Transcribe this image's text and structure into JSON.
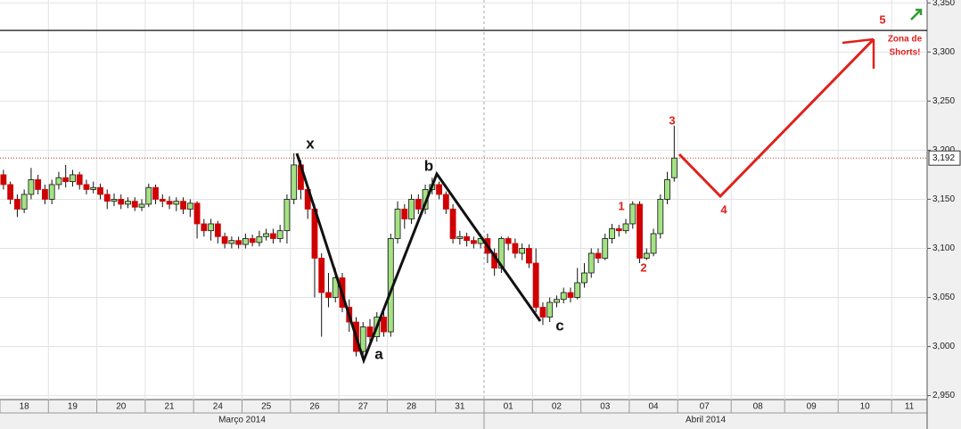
{
  "chart_data": {
    "type": "candlestick",
    "categories": [
      "18",
      "19",
      "20",
      "21",
      "24",
      "25",
      "26",
      "27",
      "28",
      "31",
      "01",
      "02",
      "03",
      "04",
      "07",
      "08",
      "09",
      "10",
      "11"
    ],
    "months": [
      "Março 2014",
      "Abril 2014"
    ],
    "ylim": [
      2946,
      3353
    ],
    "yticks": [
      {
        "value": 2950,
        "label": "2,950"
      },
      {
        "value": 3000,
        "label": "3,000"
      },
      {
        "value": 3050,
        "label": "3,050"
      },
      {
        "value": 3100,
        "label": "3,100"
      },
      {
        "value": 3150,
        "label": "3,150"
      },
      {
        "value": 3200,
        "label": "3,200"
      },
      {
        "value": 3250,
        "label": "3,250"
      },
      {
        "value": 3300,
        "label": "3,300"
      },
      {
        "value": 3350,
        "label": "3,350"
      }
    ],
    "grid": true,
    "up_color": "#a4e283",
    "down_color": "#d10000",
    "last_price": {
      "value": 3192,
      "label": "3,192"
    },
    "hlines": [
      3322
    ],
    "open": [
      3175,
      3165,
      3150,
      3140,
      3155,
      3170,
      3160,
      3150,
      3165,
      3172,
      3168,
      3175,
      3165,
      3160,
      3162,
      3155,
      3148,
      3150,
      3145,
      3148,
      3142,
      3145,
      3162,
      3150,
      3148,
      3145,
      3148,
      3140,
      3146,
      3125,
      3118,
      3125,
      3112,
      3105,
      3108,
      3104,
      3110,
      3106,
      3112,
      3115,
      3110,
      3118,
      3150,
      3185,
      3160,
      3140,
      3090,
      3055,
      3050,
      3070,
      3040,
      3025,
      2995,
      3020,
      3010,
      3030,
      3015,
      3110,
      3140,
      3130,
      3150,
      3140,
      3160,
      3165,
      3155,
      3140,
      3110,
      3112,
      3108,
      3105,
      3110,
      3095,
      3080,
      3110,
      3105,
      3095,
      3100,
      3085,
      3040,
      3030,
      3045,
      3048,
      3055,
      3050,
      3065,
      3075,
      3095,
      3090,
      3110,
      3120,
      3118,
      3125,
      3145,
      3090,
      3095,
      3115,
      3150,
      3172
    ],
    "high": [
      3180,
      3168,
      3155,
      3160,
      3182,
      3175,
      3165,
      3170,
      3178,
      3185,
      3180,
      3178,
      3170,
      3168,
      3166,
      3160,
      3156,
      3155,
      3152,
      3152,
      3150,
      3166,
      3165,
      3155,
      3153,
      3152,
      3152,
      3150,
      3148,
      3130,
      3130,
      3128,
      3116,
      3112,
      3112,
      3115,
      3114,
      3118,
      3120,
      3120,
      3124,
      3155,
      3197,
      3190,
      3165,
      3145,
      3095,
      3075,
      3080,
      3075,
      3048,
      3030,
      3025,
      3028,
      3035,
      3038,
      3115,
      3148,
      3145,
      3155,
      3155,
      3165,
      3172,
      3168,
      3158,
      3145,
      3118,
      3116,
      3112,
      3115,
      3115,
      3100,
      3112,
      3112,
      3110,
      3105,
      3104,
      3100,
      3045,
      3050,
      3052,
      3060,
      3060,
      3080,
      3085,
      3100,
      3100,
      3115,
      3125,
      3124,
      3130,
      3148,
      3148,
      3100,
      3120,
      3155,
      3178,
      3225
    ],
    "low": [
      3160,
      3145,
      3132,
      3136,
      3150,
      3155,
      3145,
      3145,
      3160,
      3162,
      3163,
      3160,
      3155,
      3156,
      3150,
      3140,
      3143,
      3140,
      3141,
      3138,
      3138,
      3142,
      3145,
      3142,
      3140,
      3138,
      3135,
      3132,
      3110,
      3112,
      3108,
      3105,
      3100,
      3100,
      3100,
      3100,
      3102,
      3102,
      3108,
      3105,
      3106,
      3105,
      3145,
      3150,
      3130,
      3050,
      3010,
      3040,
      3045,
      3035,
      3015,
      2990,
      2988,
      3000,
      3005,
      3010,
      3010,
      3105,
      3120,
      3125,
      3135,
      3135,
      3155,
      3150,
      3135,
      3105,
      3104,
      3102,
      3100,
      3100,
      3085,
      3072,
      3075,
      3098,
      3090,
      3088,
      3080,
      3035,
      3022,
      3025,
      3040,
      3044,
      3045,
      3048,
      3060,
      3070,
      3085,
      3088,
      3105,
      3112,
      3115,
      3120,
      3085,
      3088,
      3092,
      3110,
      3145,
      3168
    ],
    "close": [
      3165,
      3150,
      3140,
      3155,
      3170,
      3160,
      3150,
      3165,
      3172,
      3168,
      3175,
      3165,
      3160,
      3162,
      3155,
      3148,
      3150,
      3145,
      3148,
      3142,
      3145,
      3162,
      3150,
      3148,
      3145,
      3148,
      3140,
      3146,
      3125,
      3118,
      3125,
      3112,
      3105,
      3108,
      3104,
      3110,
      3106,
      3112,
      3115,
      3110,
      3118,
      3150,
      3185,
      3160,
      3140,
      3090,
      3055,
      3050,
      3070,
      3040,
      3025,
      2995,
      3020,
      3010,
      3030,
      3015,
      3110,
      3140,
      3130,
      3150,
      3140,
      3160,
      3165,
      3155,
      3140,
      3110,
      3112,
      3108,
      3105,
      3110,
      3095,
      3080,
      3110,
      3105,
      3095,
      3100,
      3085,
      3040,
      3030,
      3045,
      3048,
      3055,
      3050,
      3065,
      3075,
      3095,
      3090,
      3110,
      3120,
      3118,
      3125,
      3145,
      3090,
      3095,
      3115,
      3150,
      3170,
      3192
    ],
    "annotations": {
      "wave_labels": [
        "x",
        "a",
        "b",
        "c"
      ],
      "count_labels": [
        "1",
        "2",
        "3",
        "4",
        "5"
      ],
      "note": [
        "Zona de",
        "Shorts!"
      ]
    }
  }
}
